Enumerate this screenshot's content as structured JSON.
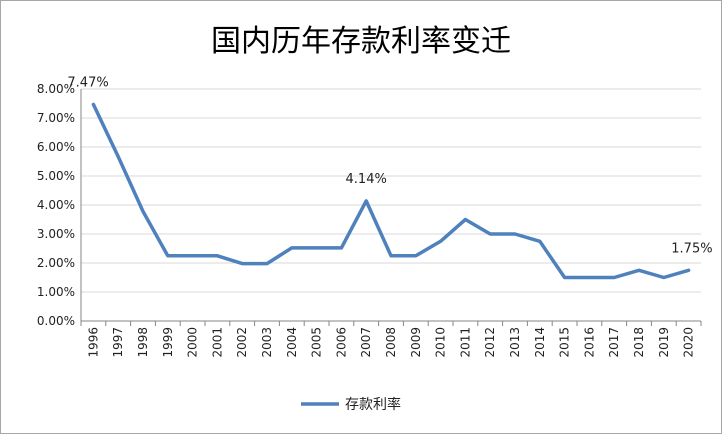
{
  "chart_data": {
    "type": "line",
    "title": "国内历年存款利率变迁",
    "xlabel": "",
    "ylabel": "",
    "categories": [
      "1996",
      "1997",
      "1998",
      "1999",
      "2000",
      "2001",
      "2002",
      "2003",
      "2004",
      "2005",
      "2006",
      "2007",
      "2008",
      "2009",
      "2010",
      "2011",
      "2012",
      "2013",
      "2014",
      "2015",
      "2016",
      "2017",
      "2018",
      "2019",
      "2020"
    ],
    "series": [
      {
        "name": "存款利率",
        "color": "#4f81bd",
        "values": [
          7.47,
          5.67,
          3.78,
          2.25,
          2.25,
          2.25,
          1.98,
          1.98,
          2.52,
          2.52,
          2.52,
          4.14,
          2.25,
          2.25,
          2.75,
          3.5,
          3.0,
          3.0,
          2.75,
          1.5,
          1.5,
          1.5,
          1.75,
          1.5,
          1.75
        ]
      }
    ],
    "y_ticks": [
      "0.00%",
      "1.00%",
      "2.00%",
      "3.00%",
      "4.00%",
      "5.00%",
      "6.00%",
      "7.00%",
      "8.00%"
    ],
    "ylim": [
      0,
      8
    ],
    "y_unit": "%",
    "data_labels": [
      {
        "category": "1996",
        "text": "7.47%"
      },
      {
        "category": "2007",
        "text": "4.14%"
      },
      {
        "category": "2020",
        "text": "1.75%"
      }
    ],
    "grid": "horizontal",
    "legend_position": "bottom"
  }
}
